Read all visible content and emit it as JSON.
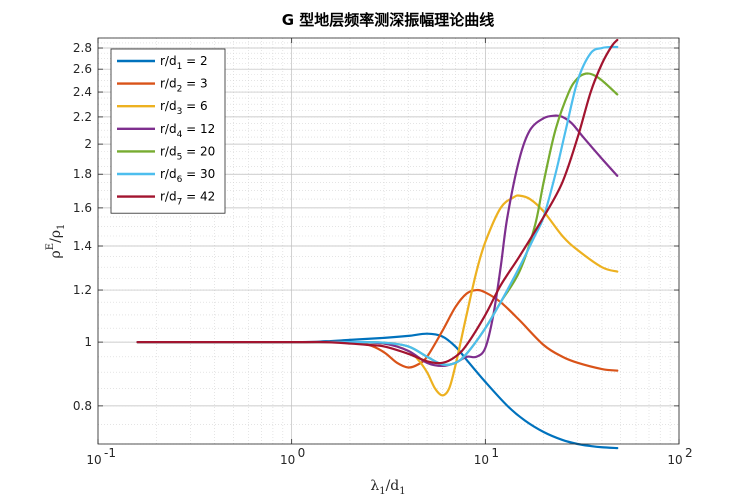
{
  "chart_data": {
    "type": "line",
    "title": "G 型地层频率测深振幅理论曲线",
    "xlabel": "λ1/d1",
    "ylabel": "ρE/ρ1",
    "xscale": "log",
    "yscale": "log",
    "xlim": [
      0.1,
      100
    ],
    "ylim": [
      0.7,
      2.9
    ],
    "grid": true,
    "legend_position": "top-left",
    "x_ticks": [
      "10",
      "10",
      "10",
      "10"
    ],
    "x_tick_exponents": [
      "-1",
      "0",
      "1",
      "2"
    ],
    "y_ticks": [
      "0.8",
      "1",
      "1.2",
      "1.4",
      "1.6",
      "1.8",
      "2",
      "2.2",
      "2.4",
      "2.6",
      "2.8"
    ],
    "series": [
      {
        "name": "r/d1 = 2",
        "legend_main": "r/d",
        "legend_sub": "1",
        "legend_rest": " = 2",
        "color": "#0072BD",
        "x": [
          0.16,
          1.0,
          1.5,
          2.0,
          3.0,
          4.0,
          5.0,
          6.0,
          7.0,
          8.0,
          10.0,
          13.0,
          16.0,
          20.0,
          25.0,
          30.0,
          35.0,
          40.0,
          48.0
        ],
        "y": [
          1.0,
          1.0,
          1.003,
          1.008,
          1.015,
          1.022,
          1.03,
          1.02,
          0.985,
          0.94,
          0.87,
          0.8,
          0.76,
          0.73,
          0.71,
          0.7,
          0.695,
          0.692,
          0.69
        ]
      },
      {
        "name": "r/d2 = 3",
        "legend_main": "r/d",
        "legend_sub": "2",
        "legend_rest": " = 3",
        "color": "#D95319",
        "x": [
          0.16,
          1.0,
          1.5,
          2.0,
          2.5,
          3.0,
          3.5,
          4.0,
          4.5,
          5.0,
          6.0,
          7.0,
          8.0,
          9.0,
          10.0,
          12.0,
          15.0,
          20.0,
          25.0,
          30.0,
          40.0,
          48.0
        ],
        "y": [
          1.0,
          1.0,
          1.0,
          0.998,
          0.99,
          0.965,
          0.93,
          0.915,
          0.925,
          0.95,
          1.04,
          1.13,
          1.185,
          1.2,
          1.19,
          1.15,
          1.08,
          0.99,
          0.95,
          0.93,
          0.91,
          0.905
        ]
      },
      {
        "name": "r/d3 = 6",
        "legend_main": "r/d",
        "legend_sub": "3",
        "legend_rest": " = 6",
        "color": "#EDB120",
        "x": [
          0.16,
          1.0,
          2.0,
          3.0,
          4.0,
          4.5,
          5.0,
          5.5,
          6.0,
          6.5,
          7.0,
          8.0,
          9.0,
          10.0,
          12.0,
          14.0,
          15.0,
          17.0,
          20.0,
          25.0,
          30.0,
          40.0,
          48.0
        ],
        "y": [
          1.0,
          1.0,
          1.0,
          0.995,
          0.97,
          0.94,
          0.9,
          0.85,
          0.83,
          0.85,
          0.92,
          1.1,
          1.28,
          1.42,
          1.6,
          1.66,
          1.67,
          1.65,
          1.58,
          1.45,
          1.38,
          1.3,
          1.28
        ]
      },
      {
        "name": "r/d4 = 12",
        "legend_main": "r/d",
        "legend_sub": "4",
        "legend_rest": " = 12",
        "color": "#7E2F8E",
        "x": [
          0.16,
          1.0,
          2.0,
          3.0,
          4.0,
          5.0,
          6.0,
          7.0,
          8.0,
          9.0,
          10.0,
          11.0,
          12.0,
          13.0,
          15.0,
          17.0,
          20.0,
          23.0,
          25.0,
          28.0,
          32.0,
          40.0,
          48.0
        ],
        "y": [
          1.0,
          1.0,
          1.0,
          0.995,
          0.97,
          0.93,
          0.92,
          0.93,
          0.95,
          0.95,
          0.98,
          1.1,
          1.3,
          1.55,
          1.9,
          2.1,
          2.19,
          2.21,
          2.2,
          2.15,
          2.05,
          1.9,
          1.79
        ]
      },
      {
        "name": "r/d5 = 20",
        "legend_main": "r/d",
        "legend_sub": "5",
        "legend_rest": " = 20",
        "color": "#77AC30",
        "x": [
          0.16,
          1.0,
          2.0,
          3.0,
          4.0,
          5.0,
          6.0,
          7.0,
          8.0,
          10.0,
          12.0,
          15.0,
          18.0,
          20.0,
          23.0,
          27.0,
          30.0,
          33.0,
          36.0,
          40.0,
          48.0
        ],
        "y": [
          1.0,
          1.0,
          1.0,
          0.998,
          0.985,
          0.95,
          0.925,
          0.93,
          0.96,
          1.05,
          1.15,
          1.28,
          1.5,
          1.75,
          2.1,
          2.4,
          2.52,
          2.56,
          2.55,
          2.5,
          2.38
        ]
      },
      {
        "name": "r/d6 = 30",
        "legend_main": "r/d",
        "legend_sub": "6",
        "legend_rest": " = 30",
        "color": "#4DBEEE",
        "x": [
          0.16,
          1.0,
          2.0,
          3.0,
          4.0,
          5.0,
          6.0,
          7.0,
          8.0,
          10.0,
          12.0,
          15.0,
          18.0,
          20.0,
          23.0,
          26.0,
          30.0,
          35.0,
          40.0,
          45.0,
          48.0
        ],
        "y": [
          1.0,
          1.0,
          1.0,
          0.998,
          0.985,
          0.95,
          0.925,
          0.93,
          0.96,
          1.05,
          1.15,
          1.3,
          1.45,
          1.55,
          1.8,
          2.1,
          2.5,
          2.75,
          2.8,
          2.81,
          2.81
        ]
      },
      {
        "name": "r/d7 = 42",
        "legend_main": "r/d",
        "legend_sub": "7",
        "legend_rest": " = 42",
        "color": "#A2142F",
        "x": [
          0.16,
          1.0,
          1.5,
          2.0,
          2.5,
          3.0,
          4.0,
          5.0,
          6.0,
          7.0,
          8.0,
          10.0,
          12.0,
          15.0,
          20.0,
          25.0,
          30.0,
          35.0,
          40.0,
          45.0,
          48.0
        ],
        "y": [
          1.0,
          1.0,
          1.0,
          0.995,
          0.99,
          0.985,
          0.96,
          0.935,
          0.93,
          0.95,
          0.99,
          1.1,
          1.22,
          1.35,
          1.55,
          1.75,
          2.05,
          2.4,
          2.65,
          2.82,
          2.88
        ]
      }
    ]
  }
}
